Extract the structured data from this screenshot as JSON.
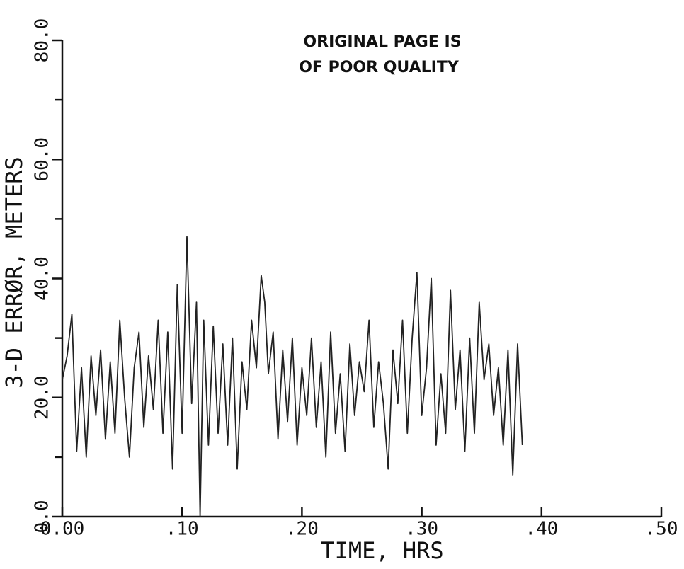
{
  "chart_data": {
    "type": "line",
    "annotation": [
      "ORIGINAL PAGE IS",
      "OF POOR QUALITY"
    ],
    "xlabel": "TIME, HRS",
    "ylabel": "3-D ERRØR, METERS",
    "xlim": [
      0,
      0.5
    ],
    "xticks": [
      {
        "value": 0,
        "label": "0.00"
      },
      {
        "value": 0.1,
        "label": ".10"
      },
      {
        "value": 0.2,
        "label": ".20"
      },
      {
        "value": 0.3,
        "label": ".30"
      },
      {
        "value": 0.4,
        "label": ".40"
      },
      {
        "value": 0.5,
        "label": ".50"
      }
    ],
    "ylim": [
      0,
      80
    ],
    "yticks": [
      {
        "value": 0,
        "label": "0.0"
      },
      {
        "value": 20,
        "label": "20.0"
      },
      {
        "value": 40,
        "label": "40.0"
      },
      {
        "value": 60,
        "label": "60.0"
      },
      {
        "value": 80,
        "label": "80.0"
      }
    ],
    "y_minor_ticks": [
      10,
      30,
      50,
      70
    ],
    "color": "#222222",
    "x": [
      0.0,
      0.004,
      0.008,
      0.012,
      0.016,
      0.02,
      0.024,
      0.028,
      0.032,
      0.036,
      0.04,
      0.044,
      0.048,
      0.052,
      0.056,
      0.06,
      0.064,
      0.068,
      0.072,
      0.076,
      0.08,
      0.084,
      0.088,
      0.092,
      0.096,
      0.1,
      0.104,
      0.108,
      0.112,
      0.115,
      0.118,
      0.122,
      0.126,
      0.13,
      0.134,
      0.138,
      0.142,
      0.146,
      0.15,
      0.154,
      0.158,
      0.162,
      0.166,
      0.169,
      0.172,
      0.176,
      0.18,
      0.184,
      0.188,
      0.192,
      0.196,
      0.2,
      0.204,
      0.208,
      0.212,
      0.216,
      0.22,
      0.224,
      0.228,
      0.232,
      0.236,
      0.24,
      0.244,
      0.248,
      0.252,
      0.256,
      0.26,
      0.264,
      0.268,
      0.272,
      0.276,
      0.28,
      0.284,
      0.288,
      0.292,
      0.296,
      0.3,
      0.304,
      0.308,
      0.312,
      0.316,
      0.32,
      0.324,
      0.328,
      0.332,
      0.336,
      0.34,
      0.344,
      0.348,
      0.352,
      0.356,
      0.36,
      0.364,
      0.368,
      0.372,
      0.376,
      0.38,
      0.384
    ],
    "values": [
      23,
      27,
      34,
      11,
      25,
      10,
      27,
      17,
      28,
      13,
      26,
      14,
      33,
      20,
      10,
      25,
      31,
      15,
      27,
      18,
      33,
      14,
      31,
      8,
      39,
      14,
      47,
      19,
      36,
      0,
      33,
      12,
      32,
      14,
      29,
      12,
      30,
      8,
      26,
      18,
      33,
      25,
      40.5,
      36,
      24,
      31,
      13,
      28,
      16,
      30,
      12,
      25,
      17,
      30,
      15,
      26,
      10,
      31,
      14,
      24,
      11,
      29,
      17,
      26,
      21,
      33,
      15,
      26,
      19,
      8,
      28,
      19,
      33,
      14,
      30,
      41,
      17,
      25,
      40,
      12,
      24,
      14,
      38,
      18,
      28,
      11,
      30,
      14,
      36,
      23,
      29,
      17,
      25,
      12,
      28,
      7,
      29,
      12
    ]
  }
}
